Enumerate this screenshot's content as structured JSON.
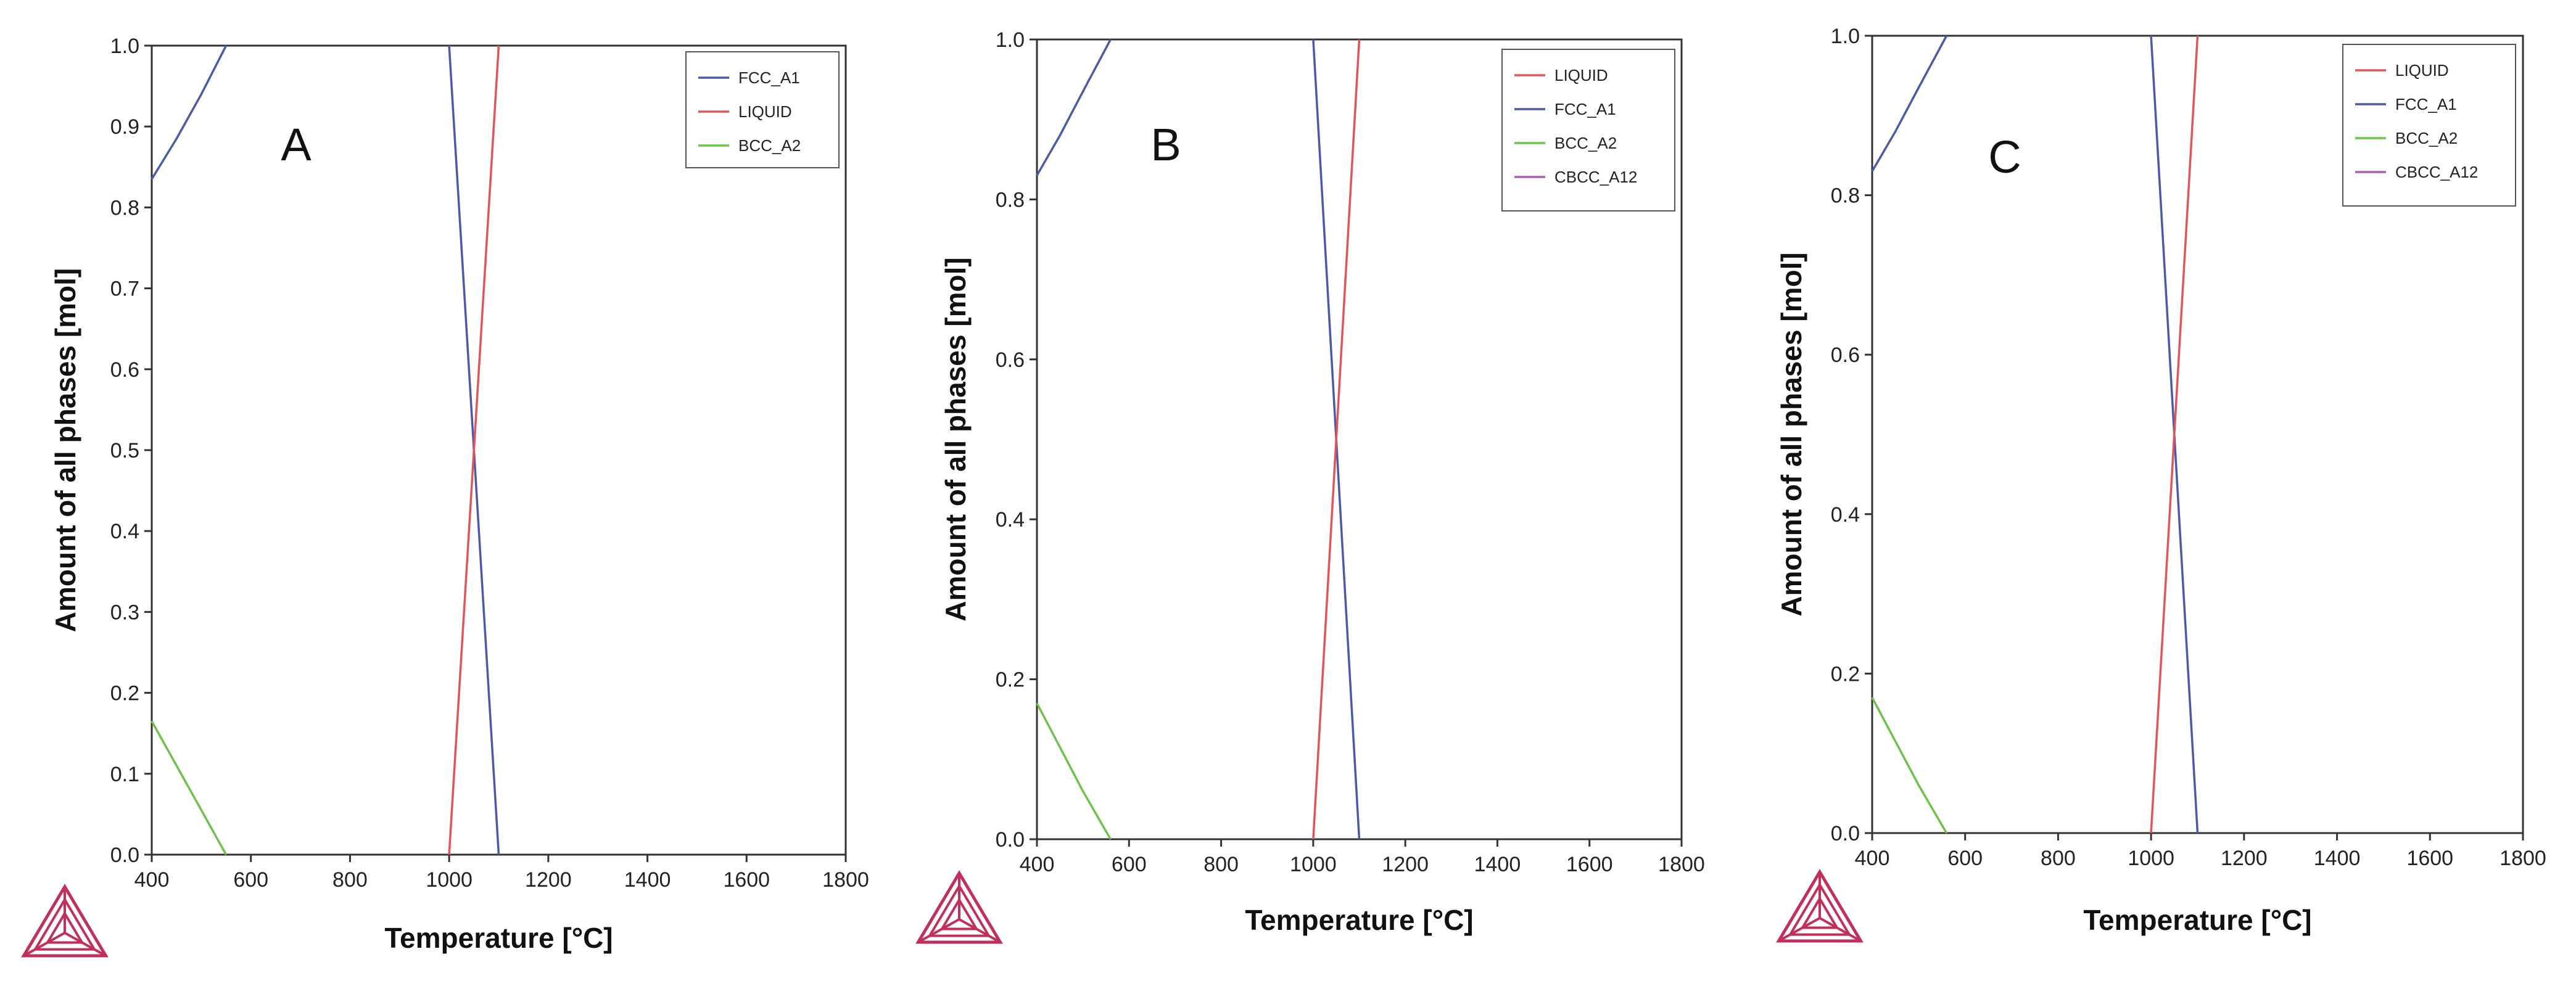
{
  "chart_data": [
    {
      "type": "line",
      "panel_label": "A",
      "xlabel": "Temperature [°C]",
      "ylabel": "Amount of all phases [mol]",
      "xlim": [
        400,
        1800
      ],
      "ylim": [
        0,
        1.0
      ],
      "x_ticks": [
        400,
        600,
        800,
        1000,
        1200,
        1400,
        1600,
        1800
      ],
      "y_ticks": [
        0.0,
        0.1,
        0.2,
        0.3,
        0.4,
        0.5,
        0.6,
        0.7,
        0.8,
        0.9,
        1.0
      ],
      "y_tick_labels": [
        "0.0",
        "0.1",
        "0.2",
        "0.3",
        "0.4",
        "0.5",
        "0.6",
        "0.7",
        "0.8",
        "0.9",
        "1.0"
      ],
      "grid": false,
      "legend_position": "top-right",
      "series": [
        {
          "name": "FCC_A1",
          "color": "#4a5aa8",
          "points": [
            [
              400,
              0.835
            ],
            [
              450,
              0.885
            ],
            [
              500,
              0.94
            ],
            [
              550,
              1.0
            ]
          ]
        },
        {
          "name": "FCC_A1",
          "color": "#4a5aa8",
          "points": [
            [
              1000,
              1.0
            ],
            [
              1050,
              0.5
            ],
            [
              1100,
              0.0
            ]
          ]
        },
        {
          "name": "LIQUID",
          "color": "#e0545a",
          "points": [
            [
              1000,
              0.0
            ],
            [
              1050,
              0.5
            ],
            [
              1100,
              1.0
            ]
          ]
        },
        {
          "name": "BCC_A2",
          "color": "#6cc24a",
          "points": [
            [
              400,
              0.165
            ],
            [
              450,
              0.11
            ],
            [
              500,
              0.055
            ],
            [
              550,
              0.0
            ]
          ]
        }
      ],
      "legend": [
        "FCC_A1",
        "LIQUID",
        "BCC_A2"
      ]
    },
    {
      "type": "line",
      "panel_label": "B",
      "xlabel": "Temperature [°C]",
      "ylabel": "Amount of all phases [mol]",
      "xlim": [
        400,
        1800
      ],
      "ylim": [
        0,
        1.0
      ],
      "x_ticks": [
        400,
        600,
        800,
        1000,
        1200,
        1400,
        1600,
        1800
      ],
      "y_ticks": [
        0.0,
        0.2,
        0.4,
        0.6,
        0.8,
        1.0
      ],
      "y_tick_labels": [
        "0.0",
        "0.2",
        "0.4",
        "0.6",
        "0.8",
        "1.0"
      ],
      "grid": false,
      "legend_position": "top-right",
      "series": [
        {
          "name": "FCC_A1",
          "color": "#4a5aa8",
          "points": [
            [
              400,
              0.83
            ],
            [
              450,
              0.88
            ],
            [
              500,
              0.935
            ],
            [
              560,
              1.0
            ]
          ]
        },
        {
          "name": "FCC_A1",
          "color": "#4a5aa8",
          "points": [
            [
              1000,
              1.0
            ],
            [
              1050,
              0.5
            ],
            [
              1100,
              0.0
            ]
          ]
        },
        {
          "name": "LIQUID",
          "color": "#e0545a",
          "points": [
            [
              1000,
              0.0
            ],
            [
              1050,
              0.5
            ],
            [
              1100,
              1.0
            ]
          ]
        },
        {
          "name": "BCC_A2",
          "color": "#6cc24a",
          "points": [
            [
              400,
              0.17
            ],
            [
              450,
              0.115
            ],
            [
              500,
              0.06
            ],
            [
              560,
              0.0
            ]
          ]
        }
      ],
      "legend": [
        "LIQUID",
        "FCC_A1",
        "BCC_A2",
        "CBCC_A12"
      ],
      "legend_colors": [
        "#e0545a",
        "#4a5aa8",
        "#6cc24a",
        "#b05ab8"
      ]
    },
    {
      "type": "line",
      "panel_label": "C",
      "xlabel": "Temperature [°C]",
      "ylabel": "Amount of all phases [mol]",
      "xlim": [
        400,
        1800
      ],
      "ylim": [
        0,
        1.0
      ],
      "x_ticks": [
        400,
        600,
        800,
        1000,
        1200,
        1400,
        1600,
        1800
      ],
      "y_ticks": [
        0.0,
        0.2,
        0.4,
        0.6,
        0.8,
        1.0
      ],
      "y_tick_labels": [
        "0.0",
        "0.2",
        "0.4",
        "0.6",
        "0.8",
        "1.0"
      ],
      "grid": false,
      "legend_position": "top-right",
      "series": [
        {
          "name": "FCC_A1",
          "color": "#4a5aa8",
          "points": [
            [
              400,
              0.83
            ],
            [
              450,
              0.88
            ],
            [
              500,
              0.935
            ],
            [
              560,
              1.0
            ]
          ]
        },
        {
          "name": "FCC_A1",
          "color": "#4a5aa8",
          "points": [
            [
              1000,
              1.0
            ],
            [
              1050,
              0.5
            ],
            [
              1100,
              0.0
            ]
          ]
        },
        {
          "name": "LIQUID",
          "color": "#e0545a",
          "points": [
            [
              1000,
              0.0
            ],
            [
              1050,
              0.5
            ],
            [
              1100,
              1.0
            ]
          ]
        },
        {
          "name": "BCC_A2",
          "color": "#6cc24a",
          "points": [
            [
              400,
              0.17
            ],
            [
              450,
              0.115
            ],
            [
              500,
              0.06
            ],
            [
              560,
              0.0
            ]
          ]
        }
      ],
      "legend": [
        "LIQUID",
        "FCC_A1",
        "BCC_A2",
        "CBCC_A12"
      ],
      "legend_colors": [
        "#e0545a",
        "#4a5aa8",
        "#6cc24a",
        "#b05ab8"
      ]
    }
  ],
  "logo": {
    "icon": "thermo-calc-triangle-logo",
    "color": "#c0305a"
  }
}
